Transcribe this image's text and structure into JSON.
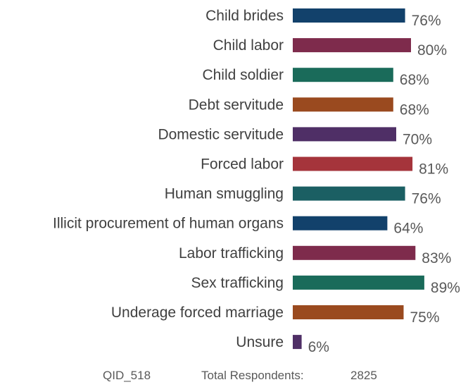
{
  "chart_data": {
    "type": "bar",
    "orientation": "horizontal",
    "categories": [
      "Child brides",
      "Child labor",
      "Child soldier",
      "Debt servitude",
      "Domestic servitude",
      "Forced labor",
      "Human smuggling",
      "Illicit procurement of human organs",
      "Labor trafficking",
      "Sex trafficking",
      "Underage forced marriage",
      "Unsure"
    ],
    "values": [
      76,
      80,
      68,
      68,
      70,
      81,
      76,
      64,
      83,
      89,
      75,
      6
    ],
    "value_labels": [
      "76%",
      "80%",
      "68%",
      "68%",
      "70%",
      "81%",
      "76%",
      "64%",
      "83%",
      "89%",
      "75%",
      "6%"
    ],
    "colors": [
      "#12416b",
      "#7e2b4c",
      "#1a6b5a",
      "#9a4a1f",
      "#4f2f66",
      "#a5343b",
      "#1b5f63",
      "#12416b",
      "#7e2b4c",
      "#1a6b5a",
      "#9a4a1f",
      "#4f2f66"
    ],
    "xlim": [
      0,
      100
    ],
    "grid": false,
    "legend": "none"
  },
  "footer": {
    "qid": "QID_518",
    "respondents_label": "Total Respondents:",
    "respondents_count": "2825"
  }
}
